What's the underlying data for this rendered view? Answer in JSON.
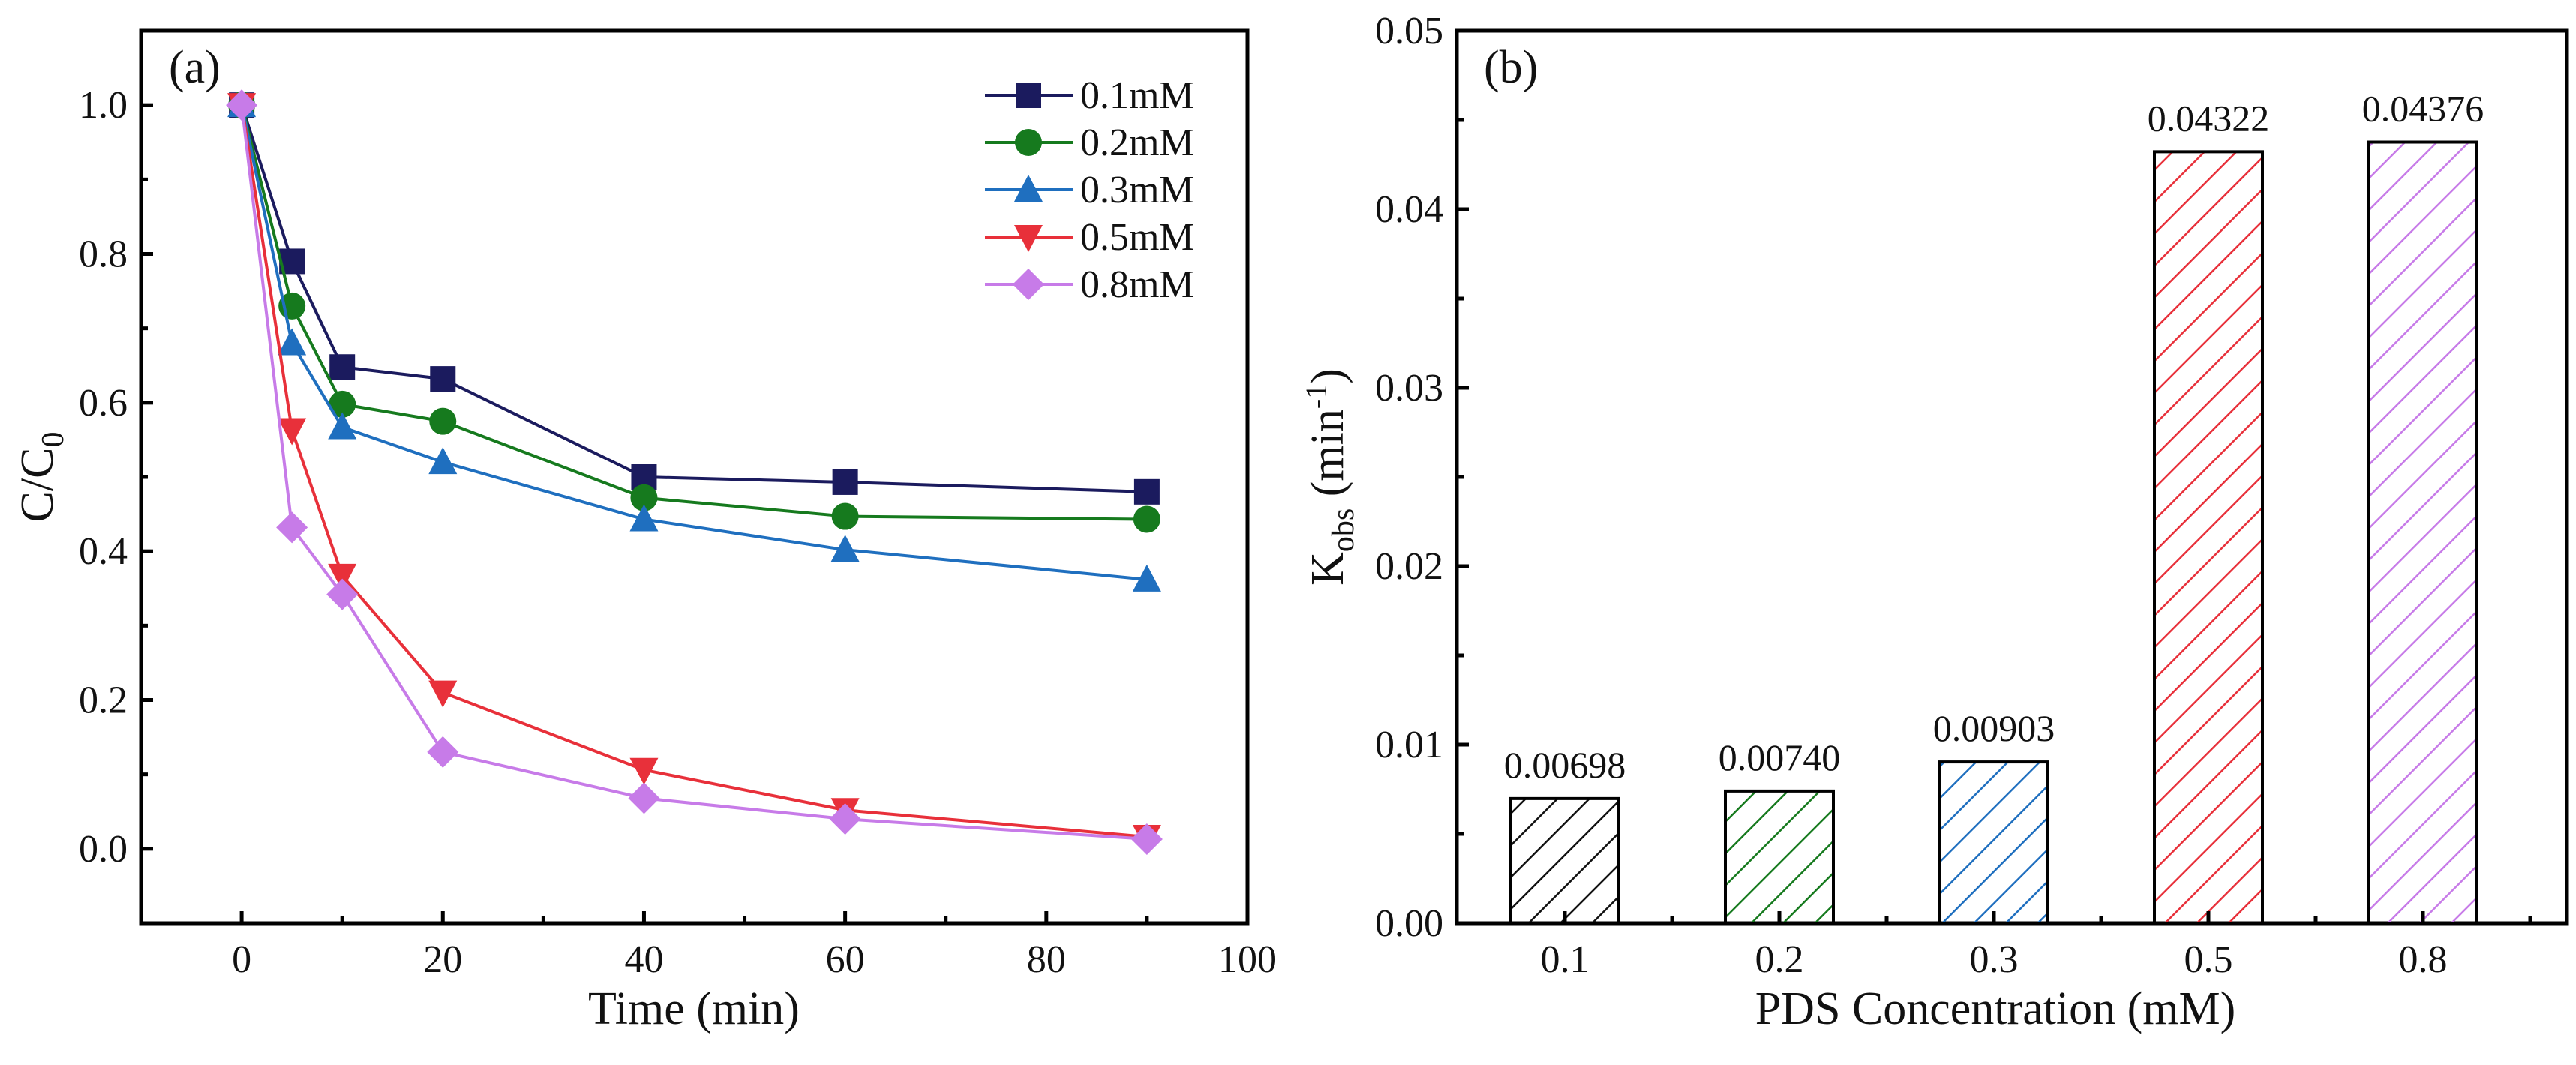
{
  "chart_data": [
    {
      "type": "line",
      "panel_label": "(a)",
      "xlabel": "Time (min)",
      "ylabel_main": "C/C",
      "ylabel_sub": "0",
      "xlim": [
        -10,
        100
      ],
      "ylim": [
        -0.1,
        1.1
      ],
      "xticks": [
        "0",
        "20",
        "40",
        "60",
        "80",
        "100"
      ],
      "xtick_values": [
        0,
        20,
        40,
        60,
        80,
        100
      ],
      "yticks": [
        "0.0",
        "0.2",
        "0.4",
        "0.6",
        "0.8",
        "1.0"
      ],
      "ytick_values": [
        0,
        0.2,
        0.4,
        0.6,
        0.8,
        1.0
      ],
      "legend_position": "top-right",
      "x": [
        0,
        5,
        10,
        20,
        40,
        60,
        90
      ],
      "series": [
        {
          "name": "0.1mM",
          "color": "#1b1b5e",
          "marker": "square",
          "values": [
            1.0,
            0.79,
            0.648,
            0.632,
            0.5,
            0.493,
            0.48
          ]
        },
        {
          "name": "0.2mM",
          "color": "#167a1e",
          "marker": "circle",
          "values": [
            1.0,
            0.73,
            0.598,
            0.575,
            0.472,
            0.447,
            0.443
          ]
        },
        {
          "name": "0.3mM",
          "color": "#1f6fbf",
          "marker": "triangle-up",
          "values": [
            1.0,
            0.68,
            0.567,
            0.52,
            0.443,
            0.402,
            0.362
          ]
        },
        {
          "name": "0.5mM",
          "color": "#e8303a",
          "marker": "triangle-down",
          "values": [
            1.0,
            0.563,
            0.367,
            0.21,
            0.106,
            0.052,
            0.016
          ]
        },
        {
          "name": "0.8mM",
          "color": "#c77be8",
          "marker": "diamond",
          "values": [
            1.0,
            0.432,
            0.342,
            0.13,
            0.068,
            0.04,
            0.013
          ]
        }
      ]
    },
    {
      "type": "bar",
      "panel_label": "(b)",
      "xlabel": "PDS Concentration (mM)",
      "ylabel_main": "K",
      "ylabel_sub": "obs",
      "ylabel_unit": " (min",
      "ylabel_sup": "-1",
      "ylabel_close": ")",
      "ylim": [
        0,
        0.05
      ],
      "yticks": [
        "0.00",
        "0.01",
        "0.02",
        "0.03",
        "0.04",
        "0.05"
      ],
      "ytick_values": [
        0,
        0.01,
        0.02,
        0.03,
        0.04,
        0.05
      ],
      "categories": [
        "0.1",
        "0.2",
        "0.3",
        "0.5",
        "0.8"
      ],
      "values": [
        0.00698,
        0.0074,
        0.00903,
        0.04322,
        0.04376
      ],
      "labels": [
        "0.00698",
        "0.00740",
        "0.00903",
        "0.04322",
        "0.04376"
      ],
      "colors": [
        "#111111",
        "#167a1e",
        "#1f6fbf",
        "#e8303a",
        "#c77be8"
      ]
    }
  ]
}
